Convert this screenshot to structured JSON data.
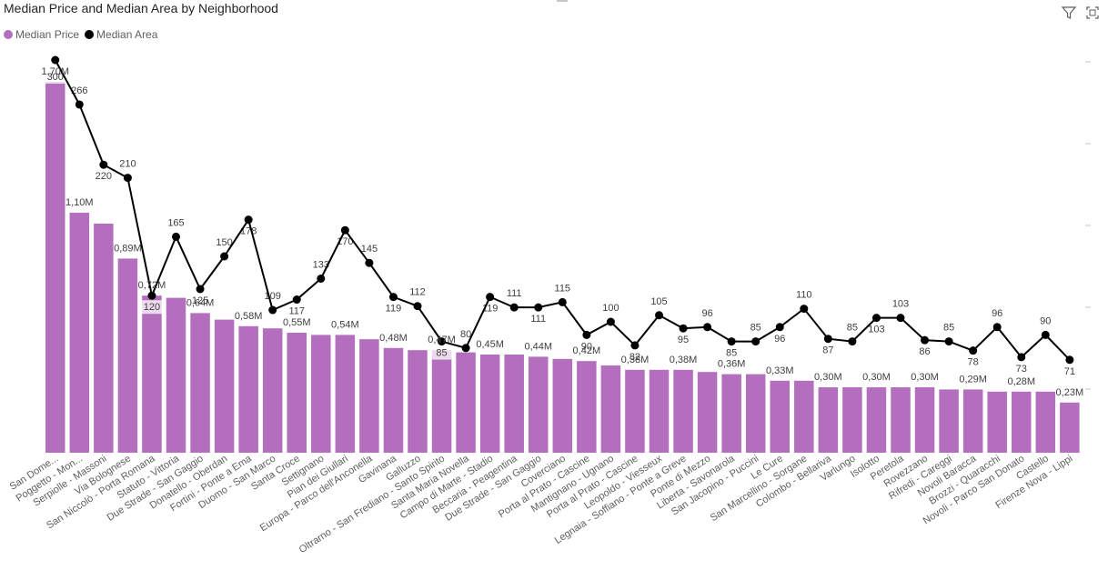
{
  "header": {
    "title": "Median Price and Median Area by Neighborhood"
  },
  "legend": {
    "price_label": "Median Price",
    "price_color": "#b36ebd",
    "area_label": "Median Area",
    "area_color": "#000000"
  },
  "icons": {
    "filter": "filter-icon",
    "focus": "focus-mode-icon"
  },
  "chart_data": {
    "type": "bar",
    "title": "Median Price and Median Area by Neighborhood",
    "grid": true,
    "legend_position": "top-left",
    "categories": [
      "San Dome...",
      "Poggetto - Mon...",
      "Serpiolle - Massoni",
      "Via Bolognese",
      "San Niccolò - Porta Romana",
      "Statuto - Vittoria",
      "Due Strade - San Gaggio",
      "Donatello - Oberdan",
      "Fortini - Ponte a Ema",
      "Duomo - San Marco",
      "Santa Croce",
      "Settignano",
      "Pian dei Giullari",
      "Europa - Parco dell'Anconella",
      "Gavinana",
      "Galluzzo",
      "Oltrarno - San Frediano - Santo Spirito",
      "Santa Maria Novella",
      "Campo di Marte - Stadio",
      "Beccaria - Peagentina",
      "Due Strade - San Gaggio",
      "Coverciano",
      "Porta al Prato - Cascine",
      "Mantignano - Ugnano",
      "Porta al Prato - Cascine",
      "Leopoldo - Viesseux",
      "Legnaia - Soffiano - Ponte a Greve",
      "Ponte di Mezzo",
      "Liberta - Savonarola",
      "San Jacopino - Puccini",
      "Le Cure",
      "San Marcellino - Sorgane",
      "Colombo - Bellariva",
      "Varlungo",
      "Isolotto",
      "Peretola",
      "Rovezzano",
      "Rifredi - Careggi",
      "Novoli Baracca",
      "Brozzi - Quaracchi",
      "Novoli - Parco San Donato",
      "Castello",
      "Firenze Nova - Lippi"
    ],
    "series": [
      {
        "name": "Median Price",
        "unit": "M",
        "values": [
          1.7,
          1.1,
          1.05,
          0.89,
          0.72,
          0.71,
          0.64,
          0.61,
          0.58,
          0.57,
          0.55,
          0.54,
          0.54,
          0.52,
          0.48,
          0.47,
          0.47,
          0.46,
          0.45,
          0.45,
          0.44,
          0.43,
          0.42,
          0.4,
          0.38,
          0.38,
          0.38,
          0.37,
          0.36,
          0.36,
          0.33,
          0.33,
          0.3,
          0.3,
          0.3,
          0.3,
          0.3,
          0.29,
          0.29,
          0.28,
          0.28,
          0.28,
          0.23
        ],
        "labels": [
          "1,70M",
          "1,10M",
          "",
          "0,89M",
          "0,72M",
          "",
          "0,64M",
          "",
          "0,58M",
          "",
          "0,55M",
          "",
          "0,54M",
          "",
          "0,48M",
          "",
          "0,47M",
          "",
          "0,45M",
          "",
          "0,44M",
          "",
          "0,42M",
          "",
          "0,38M",
          "",
          "0,38M",
          "",
          "0,36M",
          "",
          "0,33M",
          "",
          "0,30M",
          "",
          "0,30M",
          "",
          "0,30M",
          "",
          "0,29M",
          "",
          "0,28M",
          "",
          "0,23M"
        ]
      },
      {
        "name": "Median Area",
        "values": [
          300,
          266,
          220,
          210,
          120,
          165,
          125,
          150,
          178,
          109,
          117,
          133,
          170,
          145,
          119,
          112,
          85,
          80,
          119,
          111,
          111,
          115,
          90,
          100,
          82,
          105,
          95,
          96,
          85,
          85,
          96,
          110,
          87,
          85,
          103,
          103,
          86,
          85,
          78,
          96,
          73,
          90,
          71
        ]
      }
    ],
    "ylim_price": [
      0,
      1.8
    ],
    "ylim_area": [
      0,
      300
    ]
  }
}
